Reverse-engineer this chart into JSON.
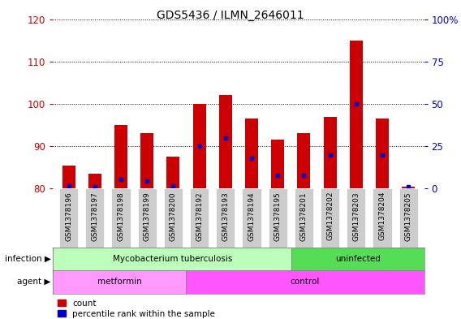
{
  "title": "GDS5436 / ILMN_2646011",
  "categories": [
    "GSM1378196",
    "GSM1378197",
    "GSM1378198",
    "GSM1378199",
    "GSM1378200",
    "GSM1378192",
    "GSM1378193",
    "GSM1378194",
    "GSM1378195",
    "GSM1378201",
    "GSM1378202",
    "GSM1378203",
    "GSM1378204",
    "GSM1378205"
  ],
  "bar_values": [
    85.5,
    83.5,
    95.0,
    93.0,
    87.5,
    100.0,
    102.0,
    96.5,
    91.5,
    93.0,
    97.0,
    115.0,
    96.5,
    80.5
  ],
  "blue_values": [
    1.5,
    1.0,
    5.5,
    4.5,
    1.5,
    25.0,
    30.0,
    18.0,
    8.0,
    8.0,
    20.0,
    50.0,
    20.0,
    1.0
  ],
  "bar_bottom": 80,
  "ylim_left": [
    80,
    120
  ],
  "ylim_right": [
    0,
    100
  ],
  "yticks_left": [
    80,
    90,
    100,
    110,
    120
  ],
  "yticks_right": [
    0,
    25,
    50,
    75,
    100
  ],
  "ytick_labels_right": [
    "0",
    "25",
    "50",
    "75",
    "100%"
  ],
  "bar_color": "#cc0000",
  "blue_color": "#0000cc",
  "infection_groups": [
    {
      "label": "Mycobacterium tuberculosis",
      "start": 0,
      "end": 9,
      "color": "#bbffbb"
    },
    {
      "label": "uninfected",
      "start": 9,
      "end": 14,
      "color": "#55dd55"
    }
  ],
  "agent_groups": [
    {
      "label": "metformin",
      "start": 0,
      "end": 5,
      "color": "#ff99ff"
    },
    {
      "label": "control",
      "start": 5,
      "end": 14,
      "color": "#ff55ff"
    }
  ],
  "infection_label": "infection",
  "agent_label": "agent",
  "legend_count_label": "count",
  "legend_pct_label": "percentile rank within the sample",
  "title_fontsize": 10,
  "axis_label_color_left": "#cc0000",
  "axis_label_color_right": "#0000cc",
  "bar_width": 0.5,
  "xtick_bg_color": "#cccccc"
}
